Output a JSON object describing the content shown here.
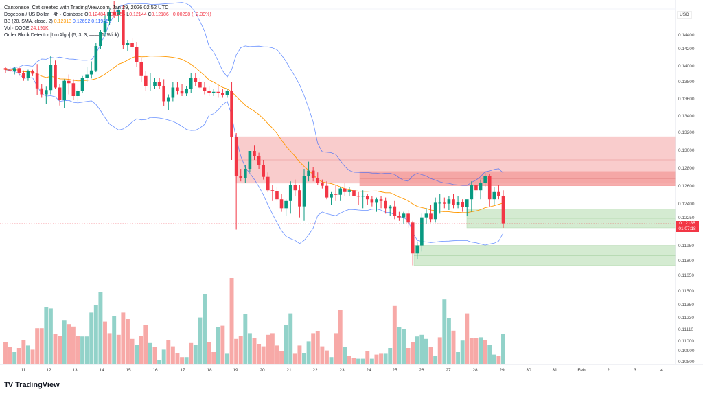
{
  "header": {
    "attribution": "Cantonese_Cat created with TradingView.com, Jan 29, 2026 02:52 UTC",
    "symbol": "Dogecoin / US Dollar · 4h · Coinbase",
    "ohlc": {
      "o_label": "O",
      "o": "0.12484",
      "h_label": "H",
      "h": "0.1256",
      "l_label": "L",
      "l": "0.12144",
      "c_label": "C",
      "c": "0.12186",
      "change": "−0.00298 (−2.39%)"
    },
    "bb": {
      "label": "BB (20, SMA, close, 2)",
      "basis": "0.12313",
      "upper": "0.12692",
      "lower": "0.11935"
    },
    "vol": {
      "label": "Vol · DOGE",
      "value": "24.191K"
    },
    "obd": {
      "label": "Order Block Detector [LuxAlgo] (5, 3, 3, ——, 1, Wick)"
    }
  },
  "price_axis": {
    "currency": "USD",
    "last_price": "0.12186",
    "countdown": "01:07:18"
  },
  "brand": {
    "logo": "TV",
    "name": "TradingView"
  },
  "colors": {
    "up": "#089981",
    "down": "#f23645",
    "vol_up": "#92d2c9",
    "vol_down": "#f7a9a7",
    "bb_basis": "#ff9800",
    "bb_band": "#2962ff",
    "bear_ob": "#f8c7c7",
    "bear_ob_dark": "#f5a09f",
    "bull_ob": "#cfe9cc"
  },
  "chart_data": {
    "type": "candlestick",
    "title": "Dogecoin / US Dollar · 4h · Coinbase",
    "xlabel": "",
    "ylabel": "USD",
    "ylim": [
      0.108,
      0.146
    ],
    "grid": false,
    "y_ticks": [
      "0.14400",
      "0.14200",
      "0.14000",
      "0.13800",
      "0.13600",
      "0.13400",
      "0.13200",
      "0.13000",
      "0.12800",
      "0.12600",
      "0.12400",
      "0.12250",
      "0.12100",
      "0.11950",
      "0.11800",
      "0.11650",
      "0.11500",
      "0.11350",
      "0.11230",
      "0.11110",
      "0.11000",
      "0.10900",
      "0.10800"
    ],
    "x_ticks": [
      "11",
      "12",
      "13",
      "14",
      "15",
      "16",
      "17",
      "18",
      "19",
      "20",
      "21",
      "22",
      "23",
      "24",
      "25",
      "26",
      "27",
      "28",
      "29",
      "30",
      "31",
      "Feb",
      "2",
      "3",
      "4"
    ],
    "order_blocks": [
      {
        "type": "bearish",
        "top": 0.1316,
        "bottom": 0.1264,
        "mid": 0.129
      },
      {
        "type": "bearish",
        "top": 0.1277,
        "bottom": 0.1261,
        "mid": 0.1269
      },
      {
        "type": "bullish",
        "top": 0.1235,
        "bottom": 0.1214,
        "mid": 0.1225
      },
      {
        "type": "bullish",
        "top": 0.1196,
        "bottom": 0.1176,
        "mid": 0.1186
      }
    ],
    "last_price": 0.12186,
    "candles_note": "Approximate 4h OHLC read from pixels; 114 candles from Jan 11 to Jan 29",
    "candles": [
      [
        0.1398,
        0.14,
        0.1392,
        0.1396
      ],
      [
        0.1396,
        0.1399,
        0.1393,
        0.1395
      ],
      [
        0.1394,
        0.14,
        0.139,
        0.1398
      ],
      [
        0.1398,
        0.14,
        0.1388,
        0.1392
      ],
      [
        0.1392,
        0.1395,
        0.1382,
        0.1386
      ],
      [
        0.1386,
        0.1396,
        0.1382,
        0.1394
      ],
      [
        0.1394,
        0.1396,
        0.1388,
        0.1391
      ],
      [
        0.1391,
        0.1403,
        0.1365,
        0.1373
      ],
      [
        0.1373,
        0.1378,
        0.1362,
        0.1366
      ],
      [
        0.1366,
        0.1375,
        0.1355,
        0.1371
      ],
      [
        0.1371,
        0.1412,
        0.1366,
        0.1402
      ],
      [
        0.1402,
        0.1407,
        0.1372,
        0.1374
      ],
      [
        0.1374,
        0.1378,
        0.1353,
        0.136
      ],
      [
        0.136,
        0.1384,
        0.135,
        0.1382
      ],
      [
        0.1382,
        0.139,
        0.1366,
        0.1379
      ],
      [
        0.1379,
        0.1384,
        0.136,
        0.1364
      ],
      [
        0.1364,
        0.1373,
        0.1358,
        0.137
      ],
      [
        0.137,
        0.1388,
        0.1368,
        0.1386
      ],
      [
        0.1386,
        0.14,
        0.138,
        0.139
      ],
      [
        0.139,
        0.1406,
        0.1385,
        0.1395
      ],
      [
        0.1395,
        0.143,
        0.1393,
        0.1425
      ],
      [
        0.1425,
        0.1448,
        0.142,
        0.1445
      ],
      [
        0.1445,
        0.147,
        0.144,
        0.1462
      ],
      [
        0.1462,
        0.148,
        0.1455,
        0.1475
      ],
      [
        0.1475,
        0.149,
        0.1466,
        0.147
      ],
      [
        0.147,
        0.1482,
        0.146,
        0.1478
      ],
      [
        0.1478,
        0.1484,
        0.142,
        0.1426
      ],
      [
        0.1426,
        0.1434,
        0.1418,
        0.143
      ],
      [
        0.143,
        0.1436,
        0.142,
        0.1424
      ],
      [
        0.1424,
        0.1431,
        0.14,
        0.1405
      ],
      [
        0.1405,
        0.141,
        0.138,
        0.1388
      ],
      [
        0.1388,
        0.1394,
        0.137,
        0.1376
      ],
      [
        0.1376,
        0.1392,
        0.137,
        0.1376
      ],
      [
        0.1376,
        0.1386,
        0.1372,
        0.138
      ],
      [
        0.138,
        0.1386,
        0.1372,
        0.1376
      ],
      [
        0.1376,
        0.1384,
        0.1352,
        0.1358
      ],
      [
        0.1358,
        0.1366,
        0.1348,
        0.1362
      ],
      [
        0.1362,
        0.138,
        0.1358,
        0.1374
      ],
      [
        0.1374,
        0.138,
        0.1366,
        0.137
      ],
      [
        0.137,
        0.1378,
        0.1364,
        0.1367
      ],
      [
        0.1367,
        0.1376,
        0.1364,
        0.1372
      ],
      [
        0.1372,
        0.1392,
        0.1368,
        0.1386
      ],
      [
        0.1386,
        0.1392,
        0.1376,
        0.138
      ],
      [
        0.138,
        0.1386,
        0.1372,
        0.1374
      ],
      [
        0.1374,
        0.138,
        0.1366,
        0.137
      ],
      [
        0.137,
        0.1376,
        0.1364,
        0.1368
      ],
      [
        0.1368,
        0.1372,
        0.1364,
        0.1369
      ],
      [
        0.1369,
        0.1376,
        0.1362,
        0.1368
      ],
      [
        0.1368,
        0.1372,
        0.1362,
        0.1365
      ],
      [
        0.1365,
        0.1372,
        0.1362,
        0.137
      ],
      [
        0.137,
        0.138,
        0.129,
        0.1316
      ],
      [
        0.1316,
        0.132,
        0.1212,
        0.1272
      ],
      [
        0.1272,
        0.128,
        0.1266,
        0.127
      ],
      [
        0.127,
        0.1284,
        0.1264,
        0.128
      ],
      [
        0.128,
        0.1294,
        0.1276,
        0.13
      ],
      [
        0.13,
        0.1306,
        0.129,
        0.1294
      ],
      [
        0.1294,
        0.1298,
        0.128,
        0.1284
      ],
      [
        0.1284,
        0.129,
        0.1268,
        0.1271
      ],
      [
        0.1271,
        0.1276,
        0.1254,
        0.1256
      ],
      [
        0.1256,
        0.1262,
        0.1244,
        0.1255
      ],
      [
        0.1255,
        0.126,
        0.1244,
        0.1246
      ],
      [
        0.1246,
        0.1252,
        0.1232,
        0.1236
      ],
      [
        0.1236,
        0.1246,
        0.1228,
        0.1244
      ],
      [
        0.1244,
        0.1266,
        0.123,
        0.1262
      ],
      [
        0.1262,
        0.1268,
        0.125,
        0.1256
      ],
      [
        0.1256,
        0.1262,
        0.1226,
        0.1238
      ],
      [
        0.1238,
        0.128,
        0.1222,
        0.1272
      ],
      [
        0.1272,
        0.1288,
        0.1266,
        0.1278
      ],
      [
        0.1278,
        0.1282,
        0.1266,
        0.127
      ],
      [
        0.127,
        0.1276,
        0.1262,
        0.1264
      ],
      [
        0.1264,
        0.1268,
        0.1258,
        0.1261
      ],
      [
        0.1261,
        0.1266,
        0.1246,
        0.1248
      ],
      [
        0.1248,
        0.1254,
        0.124,
        0.1252
      ],
      [
        0.1252,
        0.1262,
        0.1244,
        0.1251
      ],
      [
        0.1251,
        0.126,
        0.1244,
        0.1258
      ],
      [
        0.1258,
        0.1264,
        0.125,
        0.1254
      ],
      [
        0.1254,
        0.126,
        0.125,
        0.1256
      ],
      [
        0.1256,
        0.1262,
        0.122,
        0.125
      ],
      [
        0.125,
        0.1254,
        0.124,
        0.1249
      ],
      [
        0.1249,
        0.1256,
        0.1236,
        0.125
      ],
      [
        0.125,
        0.1252,
        0.124,
        0.1246
      ],
      [
        0.1246,
        0.125,
        0.1238,
        0.1242
      ],
      [
        0.1242,
        0.1248,
        0.1232,
        0.1246
      ],
      [
        0.1246,
        0.125,
        0.1236,
        0.1244
      ],
      [
        0.1244,
        0.1248,
        0.123,
        0.1236
      ],
      [
        0.1236,
        0.124,
        0.1228,
        0.1238
      ],
      [
        0.1238,
        0.1244,
        0.1224,
        0.1228
      ],
      [
        0.1228,
        0.1232,
        0.1222,
        0.1226
      ],
      [
        0.1226,
        0.1232,
        0.1218,
        0.123
      ],
      [
        0.123,
        0.1234,
        0.1214,
        0.122
      ],
      [
        0.122,
        0.1222,
        0.1176,
        0.1188
      ],
      [
        0.1188,
        0.12,
        0.1182,
        0.1196
      ],
      [
        0.1196,
        0.123,
        0.119,
        0.1226
      ],
      [
        0.1226,
        0.1236,
        0.1218,
        0.123
      ],
      [
        0.123,
        0.124,
        0.122,
        0.1224
      ],
      [
        0.1224,
        0.1248,
        0.122,
        0.1242
      ],
      [
        0.1242,
        0.1252,
        0.123,
        0.1242
      ],
      [
        0.1242,
        0.1248,
        0.1236,
        0.1241
      ],
      [
        0.1241,
        0.125,
        0.1234,
        0.1246
      ],
      [
        0.1246,
        0.1252,
        0.1236,
        0.124
      ],
      [
        0.124,
        0.125,
        0.1236,
        0.1243
      ],
      [
        0.1243,
        0.1246,
        0.1232,
        0.1237
      ],
      [
        0.1237,
        0.1244,
        0.1228,
        0.1246
      ],
      [
        0.1246,
        0.1266,
        0.1232,
        0.1262
      ],
      [
        0.1262,
        0.1266,
        0.125,
        0.1256
      ],
      [
        0.1256,
        0.1268,
        0.1246,
        0.1264
      ],
      [
        0.1264,
        0.1276,
        0.126,
        0.1272
      ],
      [
        0.1272,
        0.1274,
        0.1238,
        0.1246
      ],
      [
        0.1246,
        0.126,
        0.124,
        0.1254
      ],
      [
        0.1254,
        0.1262,
        0.1246,
        0.125
      ],
      [
        0.125,
        0.1256,
        0.1214,
        0.1219
      ]
    ],
    "volume": {
      "series": [
        {
          "name": "Vol DOGE",
          "values": [
            27,
            21,
            15,
            20,
            30,
            23,
            18,
            44,
            44,
            70,
            68,
            37,
            35,
            54,
            49,
            46,
            35,
            34,
            34,
            63,
            72,
            88,
            52,
            38,
            59,
            36,
            63,
            55,
            31,
            24,
            35,
            48,
            26,
            21,
            5,
            18,
            30,
            22,
            14,
            9,
            9,
            26,
            24,
            57,
            85,
            27,
            15,
            45,
            47,
            13,
            105,
            31,
            35,
            61,
            38,
            32,
            25,
            22,
            36,
            38,
            23,
            16,
            48,
            62,
            13,
            23,
            14,
            28,
            38,
            40,
            22,
            17,
            9,
            38,
            66,
            21,
            10,
            8,
            7,
            7,
            16,
            7,
            12,
            13,
            13,
            20,
            71,
            45,
            43,
            20,
            27,
            34,
            36,
            31,
            21,
            10,
            33,
            79,
            56,
            41,
            15,
            29,
            62,
            32,
            32,
            33,
            30,
            24,
            12,
            10,
            37,
            18,
            31,
            32
          ]
        }
      ],
      "up_flags": [
        0,
        0,
        1,
        0,
        0,
        1,
        0,
        0,
        0,
        1,
        1,
        0,
        0,
        1,
        0,
        0,
        0,
        1,
        1,
        1,
        1,
        1,
        0,
        0,
        1,
        0,
        0,
        0,
        0,
        1,
        0,
        0,
        1,
        0,
        1,
        1,
        0,
        0,
        0,
        0,
        1,
        0,
        1,
        1,
        1,
        0,
        0,
        1,
        0,
        1,
        0,
        0,
        0,
        1,
        1,
        0,
        0,
        0,
        0,
        0,
        0,
        0,
        1,
        1,
        0,
        0,
        1,
        1,
        0,
        0,
        0,
        0,
        1,
        0,
        0,
        1,
        0,
        0,
        1,
        1,
        0,
        1,
        0,
        0,
        1,
        1,
        0,
        1,
        1,
        0,
        0,
        1,
        1,
        1,
        0,
        1,
        0,
        1,
        1,
        0,
        1,
        1,
        0,
        0,
        0,
        1,
        0,
        1,
        1,
        0,
        1,
        0,
        0,
        0
      ]
    },
    "bollinger": {
      "basis_label": "BB basis (orange)",
      "upper_label": "BB upper (blue)",
      "lower_label": "BB lower (blue)"
    }
  }
}
